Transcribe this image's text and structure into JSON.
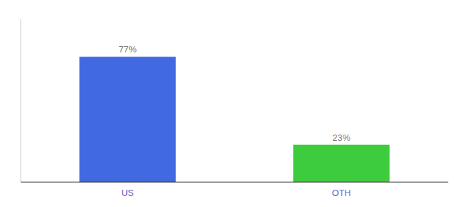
{
  "chart_data": {
    "type": "bar",
    "categories": [
      "US",
      "OTH"
    ],
    "values": [
      77,
      23
    ],
    "colors": [
      "#4169e1",
      "#3dcc3d"
    ],
    "ylim": [
      0,
      100
    ],
    "data_labels": true,
    "value_labels": [
      "77%",
      "23%"
    ],
    "tick_labels": "x",
    "grid": false
  }
}
